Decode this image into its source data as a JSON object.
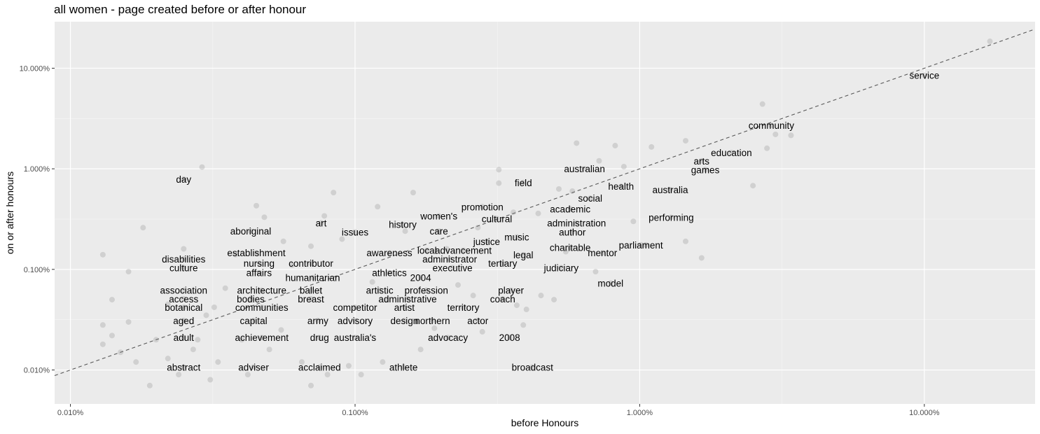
{
  "chart_data": {
    "type": "scatter",
    "title": "all women - page created before or after honour",
    "xlabel": "before Honours",
    "ylabel": "on or after honours",
    "x_scale": "log10",
    "y_scale": "log10",
    "xlim": [
      0.0088,
      24.5
    ],
    "ylim": [
      0.0046,
      29
    ],
    "x_ticks": [
      0.01,
      0.1,
      1,
      10
    ],
    "x_tick_labels": [
      "0.010%",
      "0.100%",
      "1.000%",
      "10.000%"
    ],
    "y_ticks": [
      0.01,
      0.1,
      1,
      10
    ],
    "y_tick_labels": [
      "0.010%",
      "0.100%",
      "1.000%",
      "10.000%"
    ],
    "grid": true,
    "reference_line": "y = x (dashed)",
    "labels": [
      {
        "word": "service",
        "x": 10.0,
        "y": 8.5
      },
      {
        "word": "community",
        "x": 2.9,
        "y": 2.7
      },
      {
        "word": "education",
        "x": 2.1,
        "y": 1.45
      },
      {
        "word": "arts",
        "x": 1.65,
        "y": 1.2
      },
      {
        "word": "games",
        "x": 1.7,
        "y": 0.98
      },
      {
        "word": "australian",
        "x": 0.64,
        "y": 1.0
      },
      {
        "word": "field",
        "x": 0.39,
        "y": 0.73
      },
      {
        "word": "health",
        "x": 0.86,
        "y": 0.67
      },
      {
        "word": "australia",
        "x": 1.28,
        "y": 0.62
      },
      {
        "word": "social",
        "x": 0.67,
        "y": 0.51
      },
      {
        "word": "promotion",
        "x": 0.28,
        "y": 0.42
      },
      {
        "word": "academic",
        "x": 0.57,
        "y": 0.4
      },
      {
        "word": "women's",
        "x": 0.197,
        "y": 0.34
      },
      {
        "word": "performing",
        "x": 1.29,
        "y": 0.33
      },
      {
        "word": "cultural",
        "x": 0.315,
        "y": 0.32
      },
      {
        "word": "administration",
        "x": 0.6,
        "y": 0.29
      },
      {
        "word": "history",
        "x": 0.147,
        "y": 0.28
      },
      {
        "word": "art",
        "x": 0.076,
        "y": 0.29
      },
      {
        "word": "aboriginal",
        "x": 0.043,
        "y": 0.24
      },
      {
        "word": "issues",
        "x": 0.1,
        "y": 0.235
      },
      {
        "word": "care",
        "x": 0.197,
        "y": 0.24
      },
      {
        "word": "author",
        "x": 0.58,
        "y": 0.235
      },
      {
        "word": "music",
        "x": 0.37,
        "y": 0.21
      },
      {
        "word": "justice",
        "x": 0.29,
        "y": 0.19
      },
      {
        "word": "parliament",
        "x": 1.01,
        "y": 0.175
      },
      {
        "word": "charitable",
        "x": 0.57,
        "y": 0.165
      },
      {
        "word": "local",
        "x": 0.179,
        "y": 0.155
      },
      {
        "word": "advancement",
        "x": 0.24,
        "y": 0.155
      },
      {
        "word": "establishment",
        "x": 0.045,
        "y": 0.146
      },
      {
        "word": "awareness",
        "x": 0.132,
        "y": 0.146
      },
      {
        "word": "mentor",
        "x": 0.74,
        "y": 0.146
      },
      {
        "word": "legal",
        "x": 0.39,
        "y": 0.14
      },
      {
        "word": "disabilities",
        "x": 0.025,
        "y": 0.127
      },
      {
        "word": "administrator",
        "x": 0.215,
        "y": 0.127
      },
      {
        "word": "nursing",
        "x": 0.046,
        "y": 0.115
      },
      {
        "word": "contributor",
        "x": 0.07,
        "y": 0.115
      },
      {
        "word": "tertiary",
        "x": 0.33,
        "y": 0.115
      },
      {
        "word": "culture",
        "x": 0.025,
        "y": 0.104
      },
      {
        "word": "executive",
        "x": 0.22,
        "y": 0.104
      },
      {
        "word": "judiciary",
        "x": 0.53,
        "y": 0.104
      },
      {
        "word": "affairs",
        "x": 0.046,
        "y": 0.093
      },
      {
        "word": "athletics",
        "x": 0.132,
        "y": 0.093
      },
      {
        "word": "humanitarian",
        "x": 0.071,
        "y": 0.083
      },
      {
        "word": "2004",
        "x": 0.17,
        "y": 0.083
      },
      {
        "word": "model",
        "x": 0.79,
        "y": 0.073
      },
      {
        "word": "association",
        "x": 0.025,
        "y": 0.062
      },
      {
        "word": "architecture",
        "x": 0.047,
        "y": 0.062
      },
      {
        "word": "ballet",
        "x": 0.07,
        "y": 0.062
      },
      {
        "word": "artistic",
        "x": 0.122,
        "y": 0.062
      },
      {
        "word": "profession",
        "x": 0.178,
        "y": 0.062
      },
      {
        "word": "player",
        "x": 0.353,
        "y": 0.062
      },
      {
        "word": "access",
        "x": 0.025,
        "y": 0.051
      },
      {
        "word": "bodies",
        "x": 0.043,
        "y": 0.051
      },
      {
        "word": "breast",
        "x": 0.07,
        "y": 0.051
      },
      {
        "word": "administrative",
        "x": 0.153,
        "y": 0.051
      },
      {
        "word": "coach",
        "x": 0.33,
        "y": 0.051
      },
      {
        "word": "botanical",
        "x": 0.025,
        "y": 0.042
      },
      {
        "word": "communities",
        "x": 0.047,
        "y": 0.042
      },
      {
        "word": "competitor",
        "x": 0.1,
        "y": 0.042
      },
      {
        "word": "artist",
        "x": 0.149,
        "y": 0.042
      },
      {
        "word": "territory",
        "x": 0.24,
        "y": 0.042
      },
      {
        "word": "aged",
        "x": 0.025,
        "y": 0.031
      },
      {
        "word": "capital",
        "x": 0.044,
        "y": 0.031
      },
      {
        "word": "army",
        "x": 0.074,
        "y": 0.031
      },
      {
        "word": "advisory",
        "x": 0.1,
        "y": 0.031
      },
      {
        "word": "design",
        "x": 0.149,
        "y": 0.031
      },
      {
        "word": "northern",
        "x": 0.187,
        "y": 0.031
      },
      {
        "word": "actor",
        "x": 0.27,
        "y": 0.031
      },
      {
        "word": "adult",
        "x": 0.025,
        "y": 0.021
      },
      {
        "word": "achievement",
        "x": 0.047,
        "y": 0.021
      },
      {
        "word": "drug",
        "x": 0.075,
        "y": 0.021
      },
      {
        "word": "australia's",
        "x": 0.1,
        "y": 0.021
      },
      {
        "word": "advocacy",
        "x": 0.212,
        "y": 0.021
      },
      {
        "word": "2008",
        "x": 0.349,
        "y": 0.021
      },
      {
        "word": "day",
        "x": 0.025,
        "y": 0.79
      },
      {
        "word": "abstract",
        "x": 0.025,
        "y": 0.0107
      },
      {
        "word": "adviser",
        "x": 0.044,
        "y": 0.0107
      },
      {
        "word": "acclaimed",
        "x": 0.075,
        "y": 0.0107
      },
      {
        "word": "athlete",
        "x": 0.148,
        "y": 0.0107
      },
      {
        "word": "broadcast",
        "x": 0.42,
        "y": 0.0107
      }
    ],
    "extra_points": [
      {
        "x": 17.0,
        "y": 18.5
      },
      {
        "x": 2.7,
        "y": 4.4
      },
      {
        "x": 3.0,
        "y": 2.2
      },
      {
        "x": 3.4,
        "y": 2.15
      },
      {
        "x": 2.8,
        "y": 1.6
      },
      {
        "x": 2.5,
        "y": 0.68
      },
      {
        "x": 1.1,
        "y": 1.65
      },
      {
        "x": 1.45,
        "y": 1.9
      },
      {
        "x": 0.82,
        "y": 1.7
      },
      {
        "x": 0.6,
        "y": 1.8
      },
      {
        "x": 0.72,
        "y": 1.2
      },
      {
        "x": 0.88,
        "y": 1.05
      },
      {
        "x": 0.52,
        "y": 0.63
      },
      {
        "x": 0.58,
        "y": 0.6
      },
      {
        "x": 0.95,
        "y": 0.3
      },
      {
        "x": 1.05,
        "y": 0.175
      },
      {
        "x": 1.45,
        "y": 0.19
      },
      {
        "x": 1.65,
        "y": 0.13
      },
      {
        "x": 0.7,
        "y": 0.095
      },
      {
        "x": 0.32,
        "y": 0.98
      },
      {
        "x": 0.32,
        "y": 0.72
      },
      {
        "x": 0.029,
        "y": 1.04
      },
      {
        "x": 0.084,
        "y": 0.58
      },
      {
        "x": 0.16,
        "y": 0.58
      },
      {
        "x": 0.045,
        "y": 0.43
      },
      {
        "x": 0.12,
        "y": 0.42
      },
      {
        "x": 0.018,
        "y": 0.26
      },
      {
        "x": 0.013,
        "y": 0.14
      },
      {
        "x": 0.016,
        "y": 0.095
      },
      {
        "x": 0.014,
        "y": 0.05
      },
      {
        "x": 0.013,
        "y": 0.028
      },
      {
        "x": 0.013,
        "y": 0.018
      },
      {
        "x": 0.014,
        "y": 0.022
      },
      {
        "x": 0.015,
        "y": 0.015
      },
      {
        "x": 0.016,
        "y": 0.03
      },
      {
        "x": 0.017,
        "y": 0.012
      },
      {
        "x": 0.019,
        "y": 0.007
      },
      {
        "x": 0.02,
        "y": 0.02
      },
      {
        "x": 0.022,
        "y": 0.045
      },
      {
        "x": 0.024,
        "y": 0.009
      },
      {
        "x": 0.027,
        "y": 0.016
      },
      {
        "x": 0.028,
        "y": 0.02
      },
      {
        "x": 0.03,
        "y": 0.035
      },
      {
        "x": 0.031,
        "y": 0.008
      },
      {
        "x": 0.033,
        "y": 0.012
      },
      {
        "x": 0.035,
        "y": 0.065
      },
      {
        "x": 0.038,
        "y": 0.14
      },
      {
        "x": 0.04,
        "y": 0.02
      },
      {
        "x": 0.042,
        "y": 0.009
      },
      {
        "x": 0.05,
        "y": 0.016
      },
      {
        "x": 0.055,
        "y": 0.025
      },
      {
        "x": 0.06,
        "y": 0.11
      },
      {
        "x": 0.065,
        "y": 0.012
      },
      {
        "x": 0.07,
        "y": 0.007
      },
      {
        "x": 0.08,
        "y": 0.009
      },
      {
        "x": 0.09,
        "y": 0.2
      },
      {
        "x": 0.095,
        "y": 0.011
      },
      {
        "x": 0.105,
        "y": 0.009
      },
      {
        "x": 0.115,
        "y": 0.075
      },
      {
        "x": 0.125,
        "y": 0.012
      },
      {
        "x": 0.13,
        "y": 0.05
      },
      {
        "x": 0.17,
        "y": 0.016
      },
      {
        "x": 0.19,
        "y": 0.026
      },
      {
        "x": 0.23,
        "y": 0.07
      },
      {
        "x": 0.26,
        "y": 0.055
      },
      {
        "x": 0.28,
        "y": 0.024
      },
      {
        "x": 0.37,
        "y": 0.044
      },
      {
        "x": 0.39,
        "y": 0.028
      },
      {
        "x": 0.4,
        "y": 0.04
      },
      {
        "x": 0.45,
        "y": 0.055
      },
      {
        "x": 0.5,
        "y": 0.05
      },
      {
        "x": 0.55,
        "y": 0.15
      },
      {
        "x": 0.025,
        "y": 0.16
      },
      {
        "x": 0.022,
        "y": 0.013
      },
      {
        "x": 0.032,
        "y": 0.042
      },
      {
        "x": 0.048,
        "y": 0.33
      },
      {
        "x": 0.056,
        "y": 0.19
      },
      {
        "x": 0.07,
        "y": 0.17
      },
      {
        "x": 0.078,
        "y": 0.34
      },
      {
        "x": 0.15,
        "y": 0.24
      },
      {
        "x": 0.21,
        "y": 0.16
      },
      {
        "x": 0.27,
        "y": 0.26
      },
      {
        "x": 0.36,
        "y": 0.37
      },
      {
        "x": 0.44,
        "y": 0.36
      }
    ]
  }
}
